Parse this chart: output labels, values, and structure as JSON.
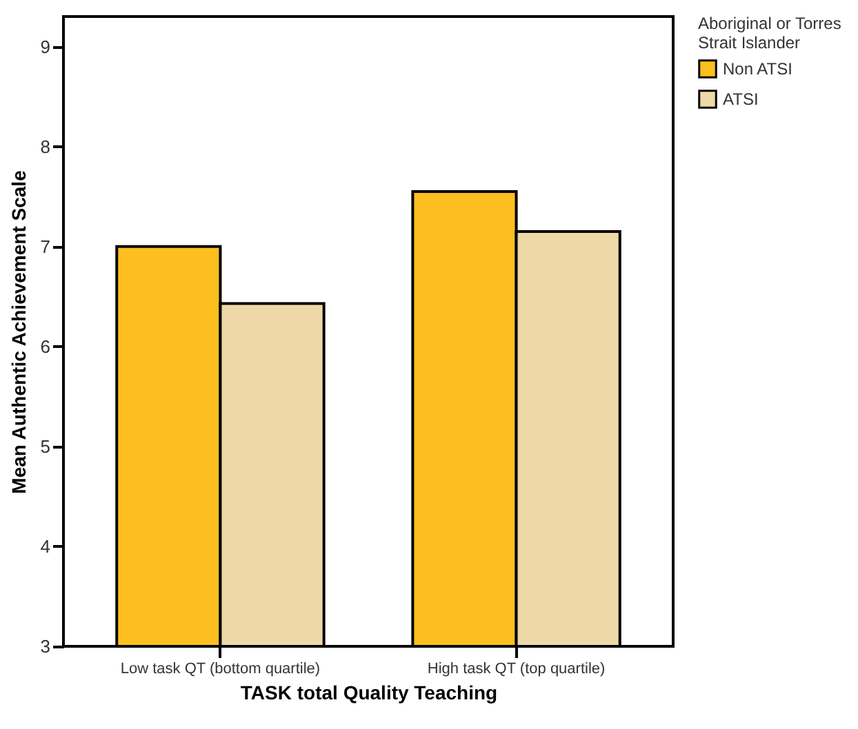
{
  "chart_data": {
    "type": "bar",
    "xlabel": "TASK total Quality Teaching",
    "ylabel": "Mean Authentic Achievement Scale",
    "legend_title": "Aboriginal or Torres Strait Islander",
    "legend": "top right",
    "grid": false,
    "categories": [
      "Low task QT (bottom quartile)",
      "High task QT (top quartile)"
    ],
    "series": [
      {
        "name": "Non ATSI",
        "color": "#fdbf20",
        "values": [
          7.0,
          7.55
        ]
      },
      {
        "name": "ATSI",
        "color": "#efd8a8",
        "values": [
          6.43,
          7.15
        ]
      }
    ],
    "ylim": [
      3,
      9.3
    ],
    "yticks": [
      3,
      4,
      5,
      6,
      7,
      8,
      9
    ]
  }
}
